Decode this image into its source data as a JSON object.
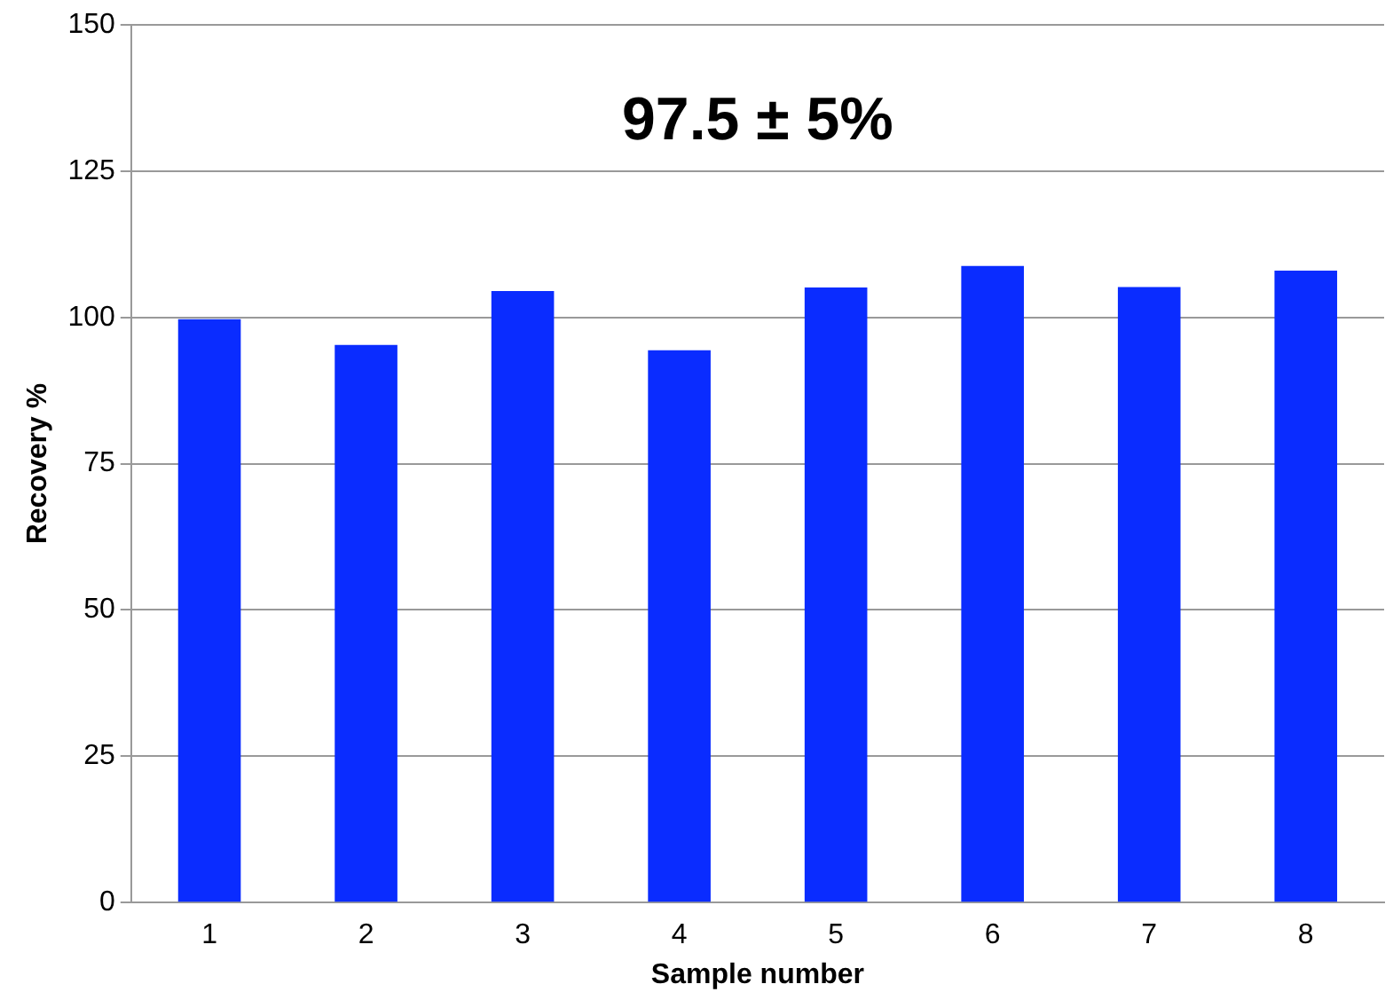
{
  "chart_data": {
    "type": "bar",
    "xlabel": "Sample number",
    "ylabel": "Recovery %",
    "categories": [
      "1",
      "2",
      "3",
      "4",
      "5",
      "6",
      "7",
      "8"
    ],
    "values": [
      99.7,
      95.3,
      104.5,
      94.4,
      105.1,
      108.8,
      105.2,
      108
    ],
    "color": "#0a2cff",
    "ylim": [
      0,
      150
    ],
    "yticks": [
      0,
      25,
      50,
      75,
      100,
      125,
      150
    ],
    "grid": "y",
    "annotations": [
      "97.5 ± 5%"
    ]
  }
}
